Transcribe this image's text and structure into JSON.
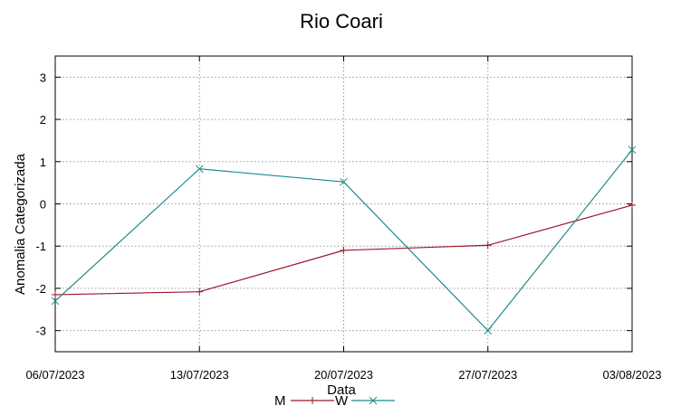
{
  "chart_data": {
    "type": "line",
    "title": "Rio Coari",
    "xlabel": "Data",
    "ylabel": "Anomalia Categorizada",
    "categories": [
      "06/07/2023",
      "13/07/2023",
      "20/07/2023",
      "27/07/2023",
      "03/08/2023"
    ],
    "ylim": [
      -3.5,
      3.5
    ],
    "yticks": [
      -3,
      -2,
      -1,
      0,
      1,
      2,
      3
    ],
    "grid": true,
    "legend_position": "bottom-center",
    "series": [
      {
        "name": "M",
        "color": "#a0142a",
        "marker": "plus",
        "values": [
          -2.15,
          -2.08,
          -1.1,
          -0.98,
          -0.03
        ]
      },
      {
        "name": "W",
        "color": "#1e8b8b",
        "marker": "x",
        "values": [
          -2.3,
          0.83,
          0.52,
          -3.0,
          1.28
        ]
      }
    ]
  }
}
